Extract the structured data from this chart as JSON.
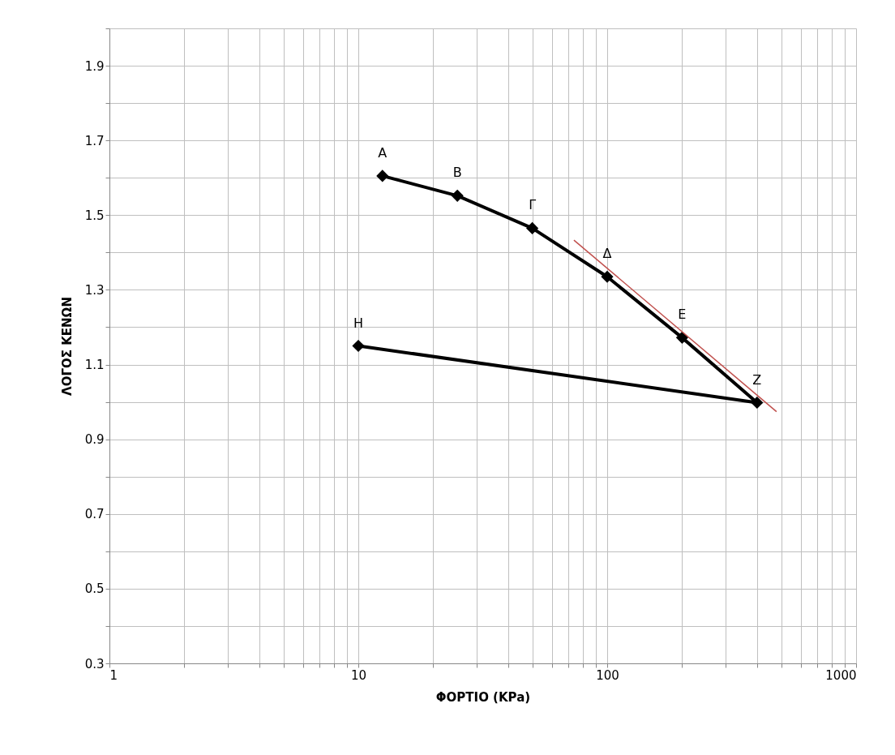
{
  "chart_data": {
    "type": "line",
    "xlabel": "ΦΟΡΤΙΟ (KPa)",
    "ylabel": "ΛΟΓΟΣ ΚΕΝΩΝ",
    "log": "x",
    "grid": true,
    "xlim": [
      1,
      1000
    ],
    "ylim": [
      0.3,
      2.0
    ],
    "xticks": [
      1,
      {
        "value": 2,
        "label": null
      },
      {
        "value": 3,
        "label": null
      },
      {
        "value": 4,
        "label": null
      },
      {
        "value": 5,
        "label": null
      },
      {
        "value": 6,
        "label": null
      },
      {
        "value": 7,
        "label": null
      },
      {
        "value": 8,
        "label": null
      },
      {
        "value": 9,
        "label": null
      },
      10,
      {
        "value": 20,
        "label": null
      },
      {
        "value": 30,
        "label": null
      },
      {
        "value": 40,
        "label": null
      },
      {
        "value": 50,
        "label": null
      },
      {
        "value": 60,
        "label": null
      },
      {
        "value": 70,
        "label": null
      },
      {
        "value": 80,
        "label": null
      },
      {
        "value": 90,
        "label": null
      },
      100,
      {
        "value": 200,
        "label": null
      },
      {
        "value": 300,
        "label": null
      },
      {
        "value": 400,
        "label": null
      },
      {
        "value": 500,
        "label": null
      },
      {
        "value": 600,
        "label": null
      },
      {
        "value": 700,
        "label": null
      },
      {
        "value": 800,
        "label": null
      },
      {
        "value": 900,
        "label": null
      },
      1000
    ],
    "yticks": [
      0.3,
      {
        "value": 0.4,
        "label": null
      },
      0.5,
      {
        "value": 0.6,
        "label": null
      },
      0.7,
      {
        "value": 0.8,
        "label": null
      },
      0.9,
      {
        "value": 1.0,
        "label": null
      },
      1.1,
      {
        "value": 1.2,
        "label": null
      },
      1.3,
      {
        "value": 1.4,
        "label": null
      },
      1.5,
      {
        "value": 1.6,
        "label": null
      },
      1.7,
      {
        "value": 1.8,
        "label": null
      },
      1.9,
      {
        "value": 2.0,
        "label": null
      }
    ],
    "series": [
      {
        "color": "#000000",
        "marker": "diamond",
        "line_style": "solid",
        "x": [
          12.5,
          25,
          50,
          100,
          200,
          400,
          10
        ],
        "values": [
          1.605,
          1.552,
          1.465,
          1.335,
          1.172,
          0.998,
          1.15
        ]
      },
      {
        "type": "line",
        "color": "#c0504d",
        "marker": "none",
        "line_style": "solid",
        "x": [
          73.5,
          479
        ],
        "values": [
          1.433,
          0.974
        ]
      }
    ],
    "annotations": [
      {
        "text": "Α",
        "x": 12.5,
        "y": 1.605
      },
      {
        "text": "Β",
        "x": 25,
        "y": 1.552
      },
      {
        "text": "Γ",
        "x": 50,
        "y": 1.465
      },
      {
        "text": "Δ",
        "x": 100,
        "y": 1.335
      },
      {
        "text": "Ε",
        "x": 200,
        "y": 1.172
      },
      {
        "text": "Ζ",
        "x": 400,
        "y": 0.998
      },
      {
        "text": "Η",
        "x": 10,
        "y": 1.15
      }
    ]
  }
}
